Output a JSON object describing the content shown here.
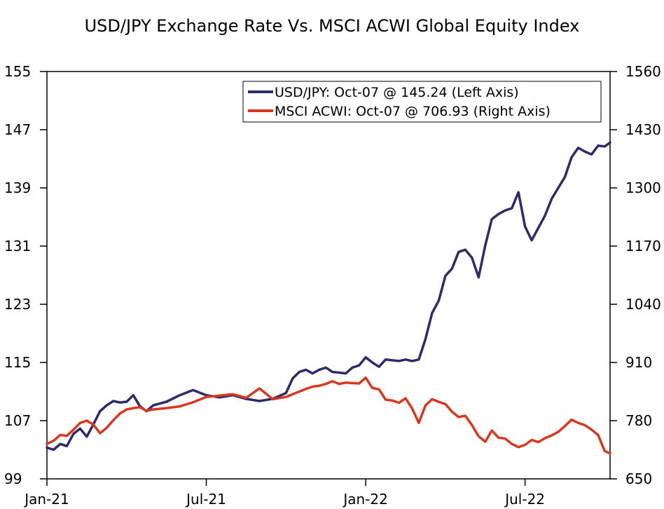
{
  "chart_data": {
    "type": "line",
    "title": "USD/JPY Exchange Rate Vs. MSCI ACWI Global Equity Index",
    "x_ticks": [
      "Jan-21",
      "Jul-21",
      "Jan-22",
      "Jul-22"
    ],
    "x_range": [
      0,
      21.2
    ],
    "x_tick_positions": [
      0,
      6,
      12,
      18
    ],
    "left_axis": {
      "range": [
        99,
        155
      ],
      "ticks": [
        "99",
        "107",
        "115",
        "123",
        "131",
        "139",
        "147",
        "155"
      ]
    },
    "right_axis": {
      "range": [
        650,
        1560
      ],
      "ticks": [
        "650",
        "780",
        "910",
        "1040",
        "1170",
        "1300",
        "1430",
        "1560"
      ]
    },
    "series": [
      {
        "name": "USD/JPY",
        "legend": "USD/JPY: Oct-07 @ 145.24 (Left Axis)",
        "axis": "left",
        "color": "#2e2a6b",
        "x": [
          0,
          0.25,
          0.5,
          0.75,
          1.0,
          1.25,
          1.5,
          1.75,
          2.0,
          2.25,
          2.5,
          2.75,
          3.0,
          3.25,
          3.5,
          3.75,
          4.0,
          4.5,
          5.0,
          5.5,
          6.0,
          6.5,
          7.0,
          7.5,
          8.0,
          8.5,
          9.0,
          9.25,
          9.5,
          9.75,
          10.0,
          10.25,
          10.5,
          10.75,
          11.0,
          11.25,
          11.5,
          11.75,
          12.0,
          12.25,
          12.5,
          12.75,
          13.0,
          13.25,
          13.5,
          13.75,
          14.0,
          14.25,
          14.5,
          14.75,
          15.0,
          15.25,
          15.5,
          15.75,
          16.0,
          16.25,
          16.5,
          16.75,
          17.0,
          17.25,
          17.5,
          17.75,
          18.0,
          18.25,
          18.5,
          18.75,
          19.0,
          19.25,
          19.5,
          19.75,
          20.0,
          20.25,
          20.5,
          20.75,
          21.0,
          21.2
        ],
        "y": [
          103.3,
          103.0,
          103.8,
          103.5,
          105.2,
          105.9,
          104.8,
          106.5,
          108.3,
          109.1,
          109.7,
          109.5,
          109.6,
          110.5,
          109.0,
          108.3,
          109.1,
          109.6,
          110.5,
          111.2,
          110.5,
          110.2,
          110.5,
          110.0,
          109.7,
          110.0,
          110.8,
          112.8,
          113.7,
          114.0,
          113.5,
          114.0,
          114.3,
          113.7,
          113.6,
          113.5,
          114.3,
          114.6,
          115.7,
          115.0,
          114.4,
          115.4,
          115.3,
          115.2,
          115.4,
          115.2,
          115.4,
          118.2,
          121.8,
          123.5,
          126.9,
          127.9,
          130.2,
          130.5,
          129.4,
          126.7,
          131.1,
          134.7,
          135.4,
          135.9,
          136.2,
          138.4,
          133.7,
          131.8,
          133.5,
          135.2,
          137.5,
          139.0,
          140.5,
          143.2,
          144.5,
          144.0,
          143.6,
          144.8,
          144.7,
          145.24
        ]
      },
      {
        "name": "MSCI ACWI",
        "legend": "MSCI ACWI: Oct-07 @ 706.93 (Right Axis)",
        "axis": "right",
        "color": "#d9381e",
        "x": [
          0,
          0.25,
          0.5,
          0.75,
          1.0,
          1.25,
          1.5,
          1.75,
          2.0,
          2.25,
          2.5,
          2.75,
          3.0,
          3.25,
          3.5,
          3.75,
          4.0,
          4.5,
          5.0,
          5.5,
          6.0,
          6.5,
          7.0,
          7.5,
          8.0,
          8.5,
          9.0,
          9.25,
          9.5,
          9.75,
          10.0,
          10.25,
          10.5,
          10.75,
          11.0,
          11.25,
          11.5,
          11.75,
          12.0,
          12.25,
          12.5,
          12.75,
          13.0,
          13.25,
          13.5,
          13.75,
          14.0,
          14.25,
          14.5,
          14.75,
          15.0,
          15.25,
          15.5,
          15.75,
          16.0,
          16.25,
          16.5,
          16.75,
          17.0,
          17.25,
          17.5,
          17.75,
          18.0,
          18.25,
          18.5,
          18.75,
          19.0,
          19.25,
          19.5,
          19.75,
          20.0,
          20.25,
          20.5,
          20.75,
          21.0,
          21.2
        ],
        "y": [
          728,
          735,
          748,
          746,
          760,
          775,
          780,
          771,
          752,
          764,
          781,
          796,
          805,
          808,
          810,
          802,
          805,
          808,
          812,
          821,
          833,
          836,
          839,
          831,
          852,
          828,
          833,
          839,
          845,
          851,
          856,
          858,
          862,
          868,
          862,
          865,
          864,
          863,
          876,
          853,
          850,
          827,
          825,
          820,
          830,
          807,
          775,
          814,
          828,
          822,
          817,
          800,
          788,
          791,
          770,
          745,
          733,
          758,
          742,
          740,
          728,
          721,
          726,
          737,
          732,
          741,
          747,
          755,
          768,
          782,
          775,
          770,
          760,
          748,
          712,
          706.93
        ]
      }
    ]
  }
}
